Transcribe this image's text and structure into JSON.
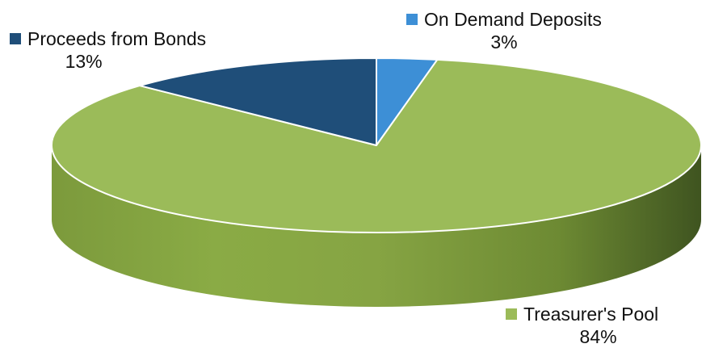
{
  "chart_data": {
    "type": "pie",
    "title": "",
    "slices": [
      {
        "label": "Proceeds from Bonds",
        "value": 13,
        "display": "13%",
        "color": "#1f4e79"
      },
      {
        "label": "On Demand Deposits",
        "value": 3,
        "display": "3%",
        "color": "#3d8fd6"
      },
      {
        "label": "Treasurer's Pool",
        "value": 84,
        "display": "84%",
        "color": "#9bbb59"
      }
    ]
  }
}
